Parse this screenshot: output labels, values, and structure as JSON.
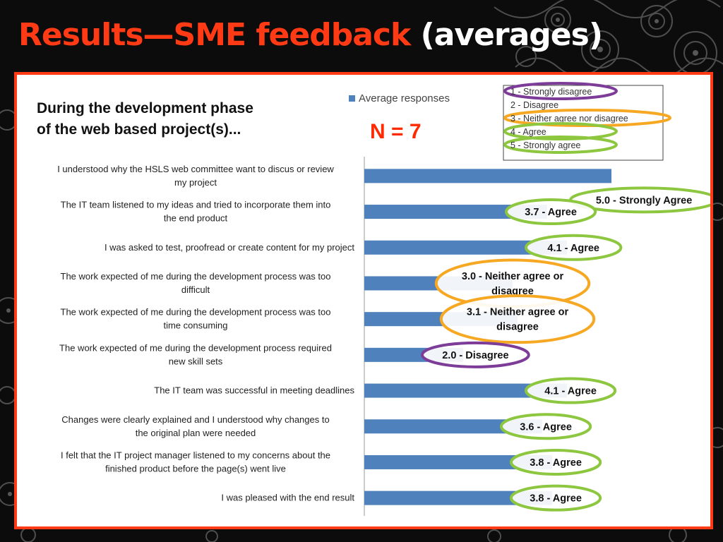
{
  "slide": {
    "title_main": "Results—SME feedback",
    "title_paren": "(averages)"
  },
  "colors": {
    "title_accent": "#ff3a14",
    "bar": "#4f81bd",
    "frame": "#ff3a14",
    "highlight_green": "#8dc63f",
    "highlight_orange": "#f7a823",
    "highlight_purple": "#7d3c98"
  },
  "chart_data": {
    "type": "bar",
    "orientation": "horizontal",
    "title": "During the development phase of the web based project(s)...",
    "title_lines": [
      "During the development phase",
      "of the web based project(s)..."
    ],
    "subtitle": "N = 7",
    "legend": {
      "position": "top",
      "entries": [
        "Average responses"
      ]
    },
    "scale_legend": [
      "1 - Strongly disagree",
      "2 - Disagree",
      "3 - Neither agree nor disagree",
      "4 - Agree",
      "5 - Strongly agree"
    ],
    "xlim": [
      0,
      5
    ],
    "grid": false,
    "categories": [
      [
        "I understood why the HSLS web committee want to discus or review",
        "my project"
      ],
      [
        "The IT team listened to my ideas and tried to incorporate them into",
        "the end product"
      ],
      [
        "I was asked to test, proofread or create content for my project"
      ],
      [
        "The work expected of me during the development process was too",
        "difficult"
      ],
      [
        "The work expected of me during the development process was too",
        "time consuming"
      ],
      [
        "The work expected of me during the development process required",
        "new skill sets"
      ],
      [
        "The IT team was successful in meeting deadlines"
      ],
      [
        "Changes were clearly explained and I understood why changes to",
        "the original plan were needed"
      ],
      [
        "I felt that the IT project manager listened to my concerns about the",
        "finished product before the page(s) went live"
      ],
      [
        "I was pleased with the end result"
      ]
    ],
    "series": [
      {
        "name": "Average responses",
        "values": [
          5.0,
          3.7,
          4.1,
          3.0,
          3.1,
          2.0,
          4.1,
          3.6,
          3.8,
          3.8
        ]
      }
    ],
    "annotations": [
      {
        "lines": [
          "5.0  - Strongly Agree"
        ],
        "ring": "green"
      },
      {
        "lines": [
          "3.7 - Agree"
        ],
        "ring": "green"
      },
      {
        "lines": [
          "4.1  - Agree"
        ],
        "ring": "green"
      },
      {
        "lines": [
          "3.0 - Neither agree or",
          "disagree"
        ],
        "ring": "orange"
      },
      {
        "lines": [
          "3.1 - Neither agree or",
          "disagree"
        ],
        "ring": "orange"
      },
      {
        "lines": [
          "2.0 - Disagree"
        ],
        "ring": "purple"
      },
      {
        "lines": [
          "4.1 - Agree"
        ],
        "ring": "green"
      },
      {
        "lines": [
          "3.6 - Agree"
        ],
        "ring": "green"
      },
      {
        "lines": [
          "3.8 - Agree"
        ],
        "ring": "green"
      },
      {
        "lines": [
          "3.8 - Agree"
        ],
        "ring": "green"
      }
    ],
    "scale_ring_colors": [
      "purple",
      "",
      "orange",
      "green",
      "green"
    ]
  }
}
